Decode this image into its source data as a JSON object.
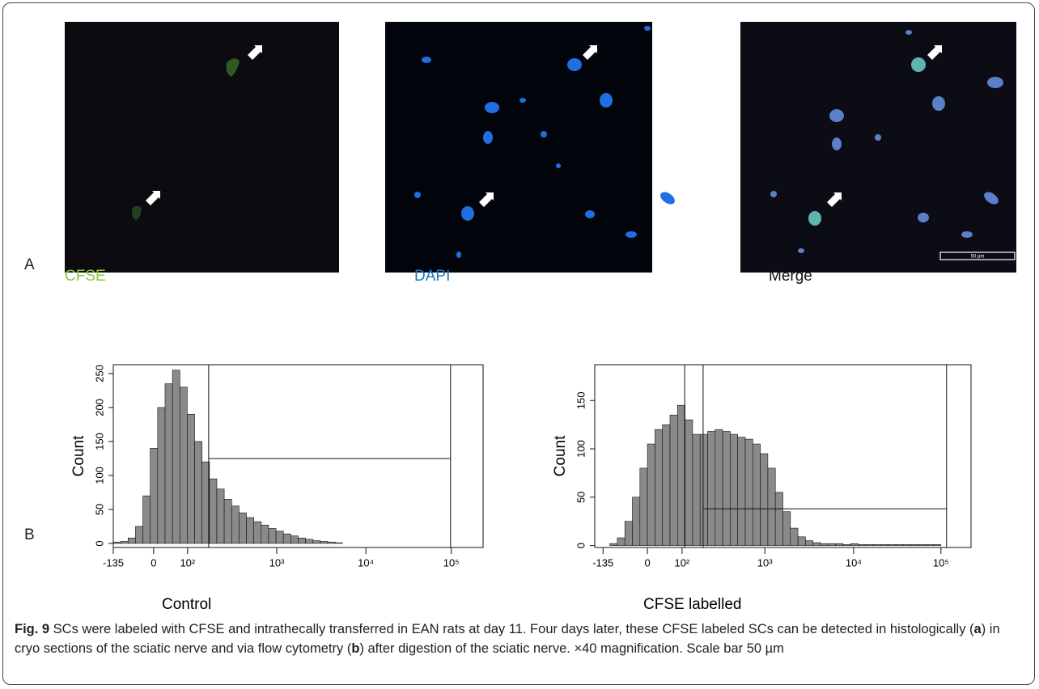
{
  "panel_a": {
    "label": "A",
    "images": [
      {
        "caption": "CFSE"
      },
      {
        "caption": "DAPI"
      },
      {
        "caption": "Merge",
        "scale_bar": "50 µm"
      }
    ]
  },
  "panel_b": {
    "label": "B",
    "charts": [
      {
        "type": "histogram",
        "title": "Control",
        "ylabel": "Count",
        "bins": [
          0,
          20,
          40,
          60,
          80,
          100,
          120,
          140,
          160,
          180,
          200,
          220,
          240,
          260,
          280,
          300,
          320,
          340,
          360,
          380,
          400,
          420,
          440,
          460,
          480,
          500,
          520,
          540,
          560,
          580,
          600,
          620,
          640,
          660,
          680,
          700,
          720,
          740,
          760,
          780,
          800,
          820,
          840,
          860,
          880,
          900,
          920,
          940,
          960,
          980,
          1000
        ],
        "counts": [
          2,
          3,
          8,
          25,
          70,
          140,
          200,
          235,
          255,
          230,
          190,
          150,
          120,
          95,
          80,
          65,
          55,
          45,
          38,
          32,
          27,
          22,
          18,
          14,
          11,
          8,
          6,
          4,
          3,
          2,
          1,
          0,
          0,
          0,
          0,
          0,
          0,
          0,
          0,
          0,
          0,
          0,
          0,
          0,
          0,
          0,
          0,
          0,
          0,
          0
        ],
        "xlim": [
          0,
          1000
        ],
        "ylim": [
          -6,
          263
        ],
        "xticks": [
          {
            "value": 0,
            "label": "-135"
          },
          {
            "value": 109,
            "label": "0"
          },
          {
            "value": 201,
            "label": "10²"
          },
          {
            "value": 442,
            "label": "10³"
          },
          {
            "value": 683,
            "label": "10⁴"
          },
          {
            "value": 914,
            "label": "10⁵"
          }
        ],
        "yticks": [
          0,
          50,
          100,
          150,
          200,
          250
        ],
        "gate": {
          "x": [
            258,
            912
          ],
          "count": 125
        }
      },
      {
        "type": "histogram",
        "title": "CFSE labelled",
        "ylabel": "Count",
        "bins": [
          0,
          20,
          40,
          60,
          80,
          100,
          120,
          140,
          160,
          180,
          200,
          220,
          240,
          260,
          280,
          300,
          320,
          340,
          360,
          380,
          400,
          420,
          440,
          460,
          480,
          500,
          520,
          540,
          560,
          580,
          600,
          620,
          640,
          660,
          680,
          700,
          720,
          740,
          760,
          780,
          800,
          820,
          840,
          860,
          880,
          900,
          920,
          940,
          960,
          980,
          1000
        ],
        "counts": [
          0,
          0,
          2,
          8,
          25,
          50,
          80,
          105,
          120,
          125,
          135,
          145,
          130,
          115,
          115,
          118,
          120,
          118,
          115,
          112,
          110,
          105,
          95,
          80,
          55,
          35,
          18,
          9,
          5,
          3,
          2,
          2,
          2,
          1,
          2,
          1,
          1,
          1,
          1,
          1,
          1,
          1,
          1,
          1,
          1,
          1,
          0,
          0,
          0,
          0
        ],
        "xlim": [
          0,
          1000
        ],
        "ylim": [
          -2,
          187
        ],
        "xticks": [
          {
            "value": 22,
            "label": "-135"
          },
          {
            "value": 140,
            "label": "0"
          },
          {
            "value": 232,
            "label": "10²"
          },
          {
            "value": 452,
            "label": "10³"
          },
          {
            "value": 688,
            "label": "10⁴"
          },
          {
            "value": 920,
            "label": "10⁵"
          }
        ],
        "yticks": [
          0,
          50,
          100,
          150
        ],
        "marker": 239,
        "gate": {
          "x": [
            288,
            935
          ],
          "count": 38
        }
      }
    ]
  },
  "caption": {
    "label": "Fig. 9",
    "parts": [
      " SCs were labeled with CFSE and intrathecally transferred in EAN rats at day 11. Four days later, these CFSE labeled SCs can be detected in histologically (",
      "a",
      ") in cryo sections of the sciatic nerve and via flow cytometry (",
      "b",
      ") after digestion of the sciatic nerve. ×40 magnification. Scale bar 50 µm"
    ]
  }
}
